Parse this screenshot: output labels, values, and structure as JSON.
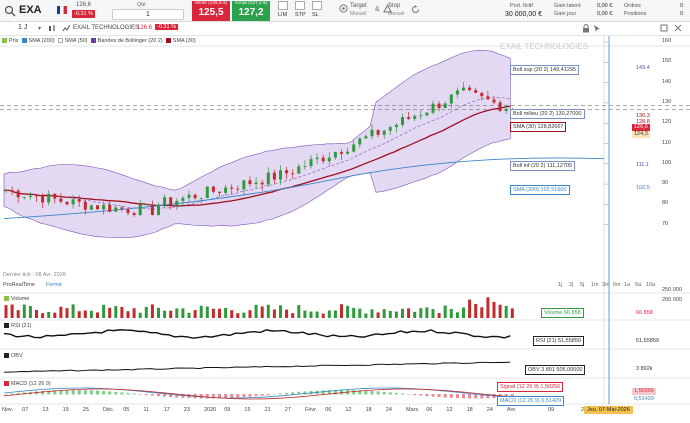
{
  "toolbar": {
    "symbol": "EXA",
    "quote_top": "126,6",
    "quote_change": "-0,31 %",
    "qty_label": "Qté",
    "qty_value": "1",
    "sell_label": "Vente (125,5 €)",
    "sell_value": "125,5",
    "buy_label": "Achat (127,2 €)",
    "buy_value": "127,2",
    "order_types": [
      "LIM",
      "STP",
      "SL"
    ],
    "target_label": "Target",
    "target_sub": "Manuel",
    "stop_label": "Stop",
    "stop_sub": "Manuel",
    "portfolio_label": "Port. fictif",
    "portfolio_value": "30 000,00 €",
    "latent_label": "Gain latent",
    "latent_value": "0,00 €",
    "day_label": "Gain jour",
    "day_value": "0,00 €",
    "orders_label": "Ordres",
    "orders_value": "0",
    "positions_label": "Positions",
    "positions_value": "0"
  },
  "chart_toolbar": {
    "interval": "1 J",
    "instrument": "EXAIL TECHNOLOGIES",
    "last": "126.6",
    "change": "-0.31 %"
  },
  "legend": [
    "Prix",
    "SMA (200)",
    "SMA (50)",
    "Bandes de Bollinger (20 2)",
    "SMA (30)"
  ],
  "watermark": "EXAIL TECHNOLOGIES",
  "last_tick": "Dernier tick : 08 Avr. 2026",
  "footer_left": "ProRealTime",
  "footer_status": "Fermé",
  "timeframes": [
    "1j",
    "2j",
    "5j",
    "1m",
    "3m",
    "6m",
    "1a",
    "5a",
    "10a"
  ],
  "price_tags": {
    "boll_sup": "Boll sup (20 2)   149,41295",
    "boll_mid": "Boll milieu (20 2)   130,27000",
    "sma30": "SMA (30)   128,82667",
    "boll_inf": "Boll inf (20 2)   111,12705",
    "sma200": "SMA (200)   102,51600"
  },
  "right_values": {
    "boll_sup": "149.4",
    "top1": "130,3",
    "top2": "128,8",
    "last": "126,6",
    "low": "124,3",
    "boll_inf": "111,1",
    "sma200": "102,5"
  },
  "y_ticks": [
    "160",
    "150",
    "140",
    "130",
    "120",
    "110",
    "100",
    "90",
    "80",
    "70"
  ],
  "volume": {
    "title": "Volume",
    "label": "Volume  66 858",
    "value": "66 858",
    "ticks": [
      "250 000",
      "200 000"
    ]
  },
  "rsi": {
    "title": "RSI (21)",
    "label": "RSI (21)  51,55859",
    "value": "51,55859"
  },
  "obv": {
    "title": "OBV",
    "label": "OBV  3 891 505,00000",
    "value": "3 892k"
  },
  "macd": {
    "title": "MACD (12 26 9)",
    "signal_label": "Signal (12 26 9)        1,50256",
    "macd_label": "MACD (12 26 9)        0,51429",
    "value1": "1,50256",
    "value2": "0,51429"
  },
  "x_labels": [
    "Nov.",
    "07",
    "13",
    "19",
    "25",
    "Déc.",
    "05",
    "11",
    "17",
    "23",
    "2026",
    "09",
    "15",
    "21",
    "27",
    "Févr.",
    "06",
    "12",
    "18",
    "24",
    "Mars",
    "06",
    "12",
    "18",
    "24",
    "Avr.",
    "09",
    "26",
    "Juin"
  ],
  "cursor_date": "Jeu. 07-Mai-2026",
  "colors": {
    "up": "#2f9a3c",
    "down": "#c42a2a",
    "band": "#e4d9f3",
    "sma30": "#a01020",
    "sma200": "#3a86c8",
    "accent": "#d9263a"
  }
}
